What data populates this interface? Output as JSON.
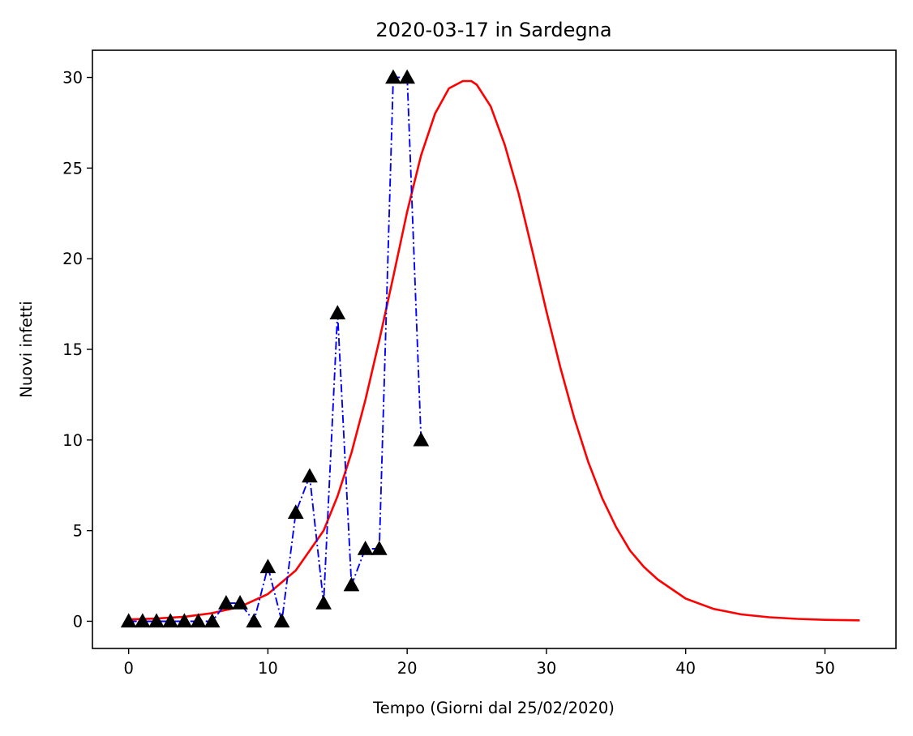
{
  "chart_data": {
    "type": "line",
    "title": "2020-03-17 in Sardegna",
    "xlabel": "Tempo (Giorni dal 25/02/2020)",
    "ylabel": "Nuovi infetti",
    "xlim": [
      -2.6,
      55.1
    ],
    "ylim": [
      -1.5,
      31.5
    ],
    "xticks": [
      0,
      10,
      20,
      30,
      40,
      50
    ],
    "yticks": [
      0,
      5,
      10,
      15,
      20,
      25,
      30
    ],
    "grid": false,
    "series": [
      {
        "kind": "observed",
        "color": "#0000ff",
        "line_style": "dash-dot",
        "marker": "triangle-up",
        "marker_color": "#000000",
        "x": [
          0,
          1,
          2,
          3,
          4,
          5,
          6,
          7,
          8,
          9,
          10,
          11,
          12,
          13,
          14,
          15,
          16,
          17,
          18,
          19,
          20,
          21
        ],
        "y": [
          0,
          0,
          0,
          0,
          0,
          0,
          0,
          1,
          1,
          0,
          3,
          0,
          6,
          8,
          1,
          17,
          2,
          4,
          4,
          30,
          30,
          10
        ]
      },
      {
        "kind": "model",
        "color": "#ff0000",
        "line_style": "solid",
        "x": [
          0,
          2,
          4,
          6,
          8,
          10,
          12,
          14,
          15,
          16,
          17,
          18,
          19,
          20,
          21,
          22,
          23,
          24,
          24.6,
          25,
          26,
          27,
          28,
          29,
          30,
          31,
          32,
          33,
          34,
          35,
          36,
          37,
          38,
          40,
          42,
          44,
          46,
          48,
          50,
          52.5
        ],
        "y": [
          0.1,
          0.15,
          0.25,
          0.45,
          0.8,
          1.5,
          2.8,
          5.0,
          6.9,
          9.3,
          12.2,
          15.5,
          19.0,
          22.6,
          25.7,
          28.0,
          29.4,
          29.8,
          29.8,
          29.6,
          28.4,
          26.3,
          23.6,
          20.4,
          17.1,
          14.0,
          11.2,
          8.8,
          6.8,
          5.2,
          3.9,
          3.0,
          2.3,
          1.25,
          0.68,
          0.38,
          0.22,
          0.13,
          0.08,
          0.05
        ]
      }
    ]
  }
}
